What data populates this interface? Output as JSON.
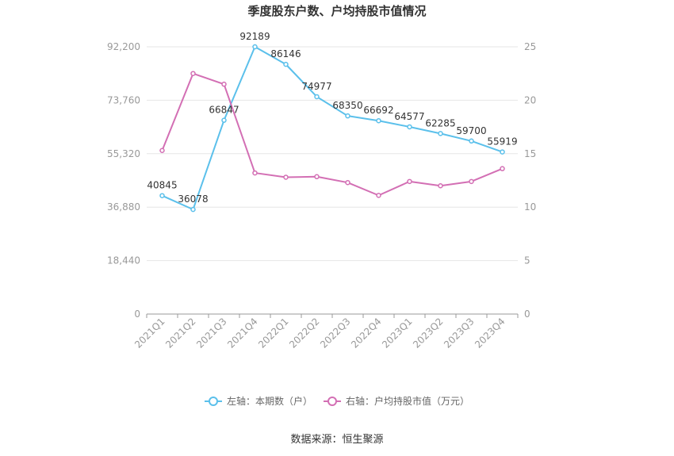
{
  "chart_data": {
    "type": "line",
    "title": "季度股东户数、户均持股市值情况",
    "categories": [
      "2021Q1",
      "2021Q2",
      "2021Q3",
      "2021Q4",
      "2022Q1",
      "2022Q2",
      "2022Q3",
      "2022Q4",
      "2023Q1",
      "2023Q2",
      "2023Q3",
      "2023Q4"
    ],
    "left_axis": {
      "ticks": [
        "0",
        "18,440",
        "36,880",
        "55,320",
        "73,760",
        "92,200"
      ],
      "ylim": [
        0,
        92200
      ]
    },
    "right_axis": {
      "ticks": [
        "0",
        "5",
        "10",
        "15",
        "20",
        "25"
      ],
      "ylim": [
        0,
        25
      ]
    },
    "series": [
      {
        "name": "左轴：本期数（户）",
        "axis": "left",
        "color": "#5bc0eb",
        "values": [
          40845,
          36078,
          66847,
          92189,
          86146,
          74977,
          68350,
          66692,
          64577,
          62285,
          59700,
          55919
        ],
        "labels": [
          "40845",
          "36078",
          "66847",
          "92189",
          "86146",
          "74977",
          "68350",
          "66692",
          "64577",
          "62285",
          "59700",
          "55919"
        ]
      },
      {
        "name": "右轴：户均持股市值（万元）",
        "axis": "right",
        "color": "#d36fb4",
        "values": [
          15.3,
          22.5,
          21.5,
          13.2,
          12.8,
          12.85,
          12.3,
          11.1,
          12.4,
          12.0,
          12.4,
          13.6
        ]
      }
    ],
    "grid": true,
    "legend_position": "bottom"
  },
  "source": "数据来源：恒生聚源"
}
